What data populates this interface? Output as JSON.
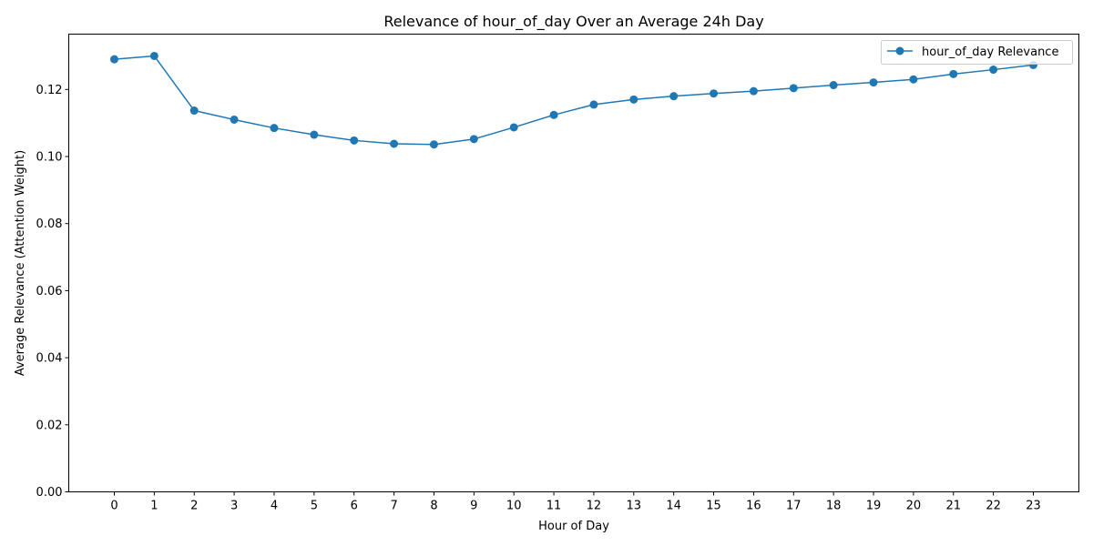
{
  "chart_data": {
    "type": "line",
    "title": "Relevance of hour_of_day Over an Average 24h Day",
    "xlabel": "Hour of Day",
    "ylabel": "Average Relevance (Attention Weight)",
    "categories": [
      "0",
      "1",
      "2",
      "3",
      "4",
      "5",
      "6",
      "7",
      "8",
      "9",
      "10",
      "11",
      "12",
      "13",
      "14",
      "15",
      "16",
      "17",
      "18",
      "19",
      "20",
      "21",
      "22",
      "23"
    ],
    "series": [
      {
        "name": "hour_of_day Relevance",
        "color": "#1f77b4",
        "marker": "circle",
        "values": [
          0.129,
          0.13,
          0.1137,
          0.111,
          0.1085,
          0.1065,
          0.1048,
          0.1038,
          0.1036,
          0.1052,
          0.1087,
          0.1124,
          0.1155,
          0.117,
          0.118,
          0.1188,
          0.1195,
          0.1204,
          0.1213,
          0.1221,
          0.123,
          0.1246,
          0.1259,
          0.1273
        ]
      }
    ],
    "ylim": [
      0,
      0.1365
    ],
    "yticks": [
      "0.00",
      "0.02",
      "0.04",
      "0.06",
      "0.08",
      "0.10",
      "0.12"
    ],
    "ytick_values": [
      0,
      0.02,
      0.04,
      0.06,
      0.08,
      0.1,
      0.12
    ],
    "grid": false,
    "legend_position": "top-right"
  }
}
